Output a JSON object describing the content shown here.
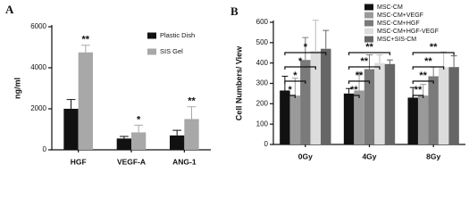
{
  "chart_data": [
    {
      "type": "bar",
      "panel_label": "A",
      "y_label": "ng/ml",
      "categories": [
        "HGF",
        "VEGF-A",
        "ANG-1"
      ],
      "series": [
        {
          "name": "Plastic Dish",
          "color": "#111111",
          "values": [
            2000,
            550,
            700
          ],
          "errors": [
            450,
            100,
            250
          ]
        },
        {
          "name": "SIS Gel",
          "color": "#a8a8a8",
          "values": [
            4750,
            850,
            1500
          ],
          "errors": [
            350,
            350,
            600
          ]
        }
      ],
      "ylim": [
        0,
        6000
      ],
      "yticks": [
        0,
        2000,
        4000,
        6000
      ],
      "legend": "top-right",
      "annotations": [
        {
          "label": "**",
          "category": 0,
          "series": 1
        },
        {
          "label": "*",
          "category": 1,
          "series": 1
        },
        {
          "label": "**",
          "category": 2,
          "series": 1
        }
      ]
    },
    {
      "type": "bar",
      "panel_label": "B",
      "y_label": "Cell Numbers/ View",
      "categories": [
        "0Gy",
        "4Gy",
        "8Gy"
      ],
      "series": [
        {
          "name": "MSC-CM",
          "color": "#111111",
          "values": [
            265,
            250,
            230
          ],
          "errors": [
            70,
            25,
            50
          ]
        },
        {
          "name": "MSC-CM+VEGF",
          "color": "#9a9a9a",
          "values": [
            240,
            265,
            240
          ],
          "errors": [
            85,
            90,
            55
          ]
        },
        {
          "name": "MSC-CM+HGF",
          "color": "#7a7a7a",
          "values": [
            415,
            370,
            335
          ],
          "errors": [
            110,
            70,
            45
          ]
        },
        {
          "name": "MSC-CM+HGF-VEGF",
          "color": "#dcdcdc",
          "values": [
            460,
            400,
            380
          ],
          "errors": [
            150,
            40,
            75
          ]
        },
        {
          "name": "MSC+SIS-CM",
          "color": "#666666",
          "values": [
            470,
            395,
            380
          ],
          "errors": [
            90,
            20,
            55
          ]
        }
      ],
      "ylim": [
        0,
        600
      ],
      "yticks": [
        0,
        100,
        200,
        300,
        400,
        500,
        600
      ],
      "legend": "top",
      "brackets": [
        {
          "label": "*",
          "category": 0,
          "from": 0,
          "to": 1
        },
        {
          "label": "*",
          "category": 0,
          "from": 0,
          "to": 2
        },
        {
          "label": "*",
          "category": 0,
          "from": 0,
          "to": 3
        },
        {
          "label": "*",
          "category": 0,
          "from": 0,
          "to": 4
        },
        {
          "label": "**",
          "category": 1,
          "from": 0,
          "to": 1
        },
        {
          "label": "**",
          "category": 1,
          "from": 0,
          "to": 2
        },
        {
          "label": "**",
          "category": 1,
          "from": 0,
          "to": 3
        },
        {
          "label": "**",
          "category": 1,
          "from": 0,
          "to": 4
        },
        {
          "label": "**",
          "category": 2,
          "from": 0,
          "to": 1
        },
        {
          "label": "**",
          "category": 2,
          "from": 0,
          "to": 2
        },
        {
          "label": "**",
          "category": 2,
          "from": 0,
          "to": 3
        },
        {
          "label": "**",
          "category": 2,
          "from": 0,
          "to": 4
        }
      ]
    }
  ]
}
